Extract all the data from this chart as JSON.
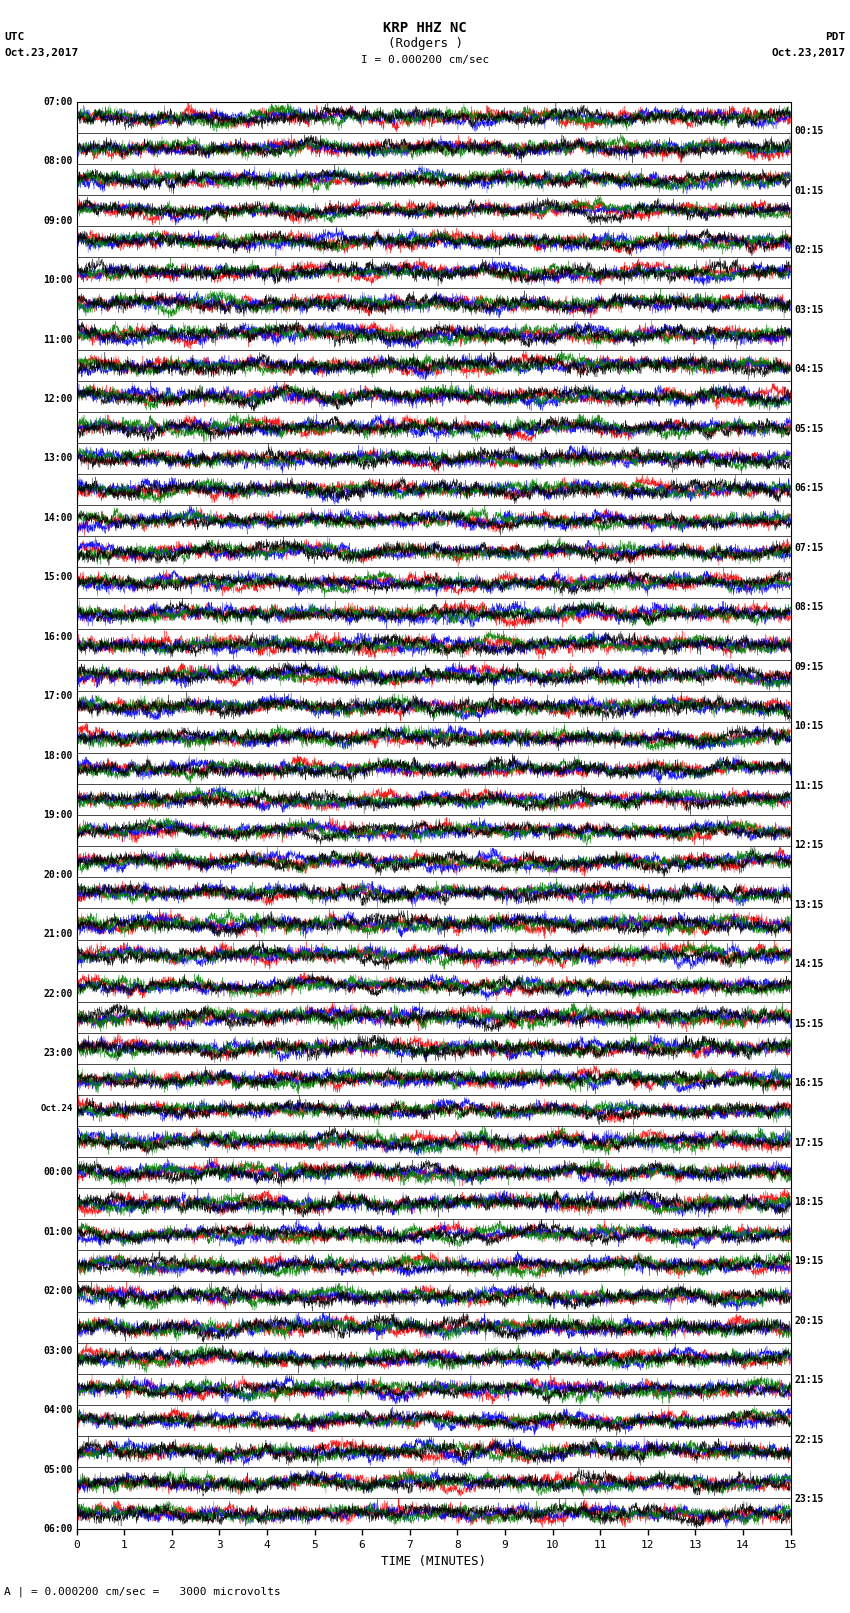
{
  "title_line1": "KRP HHZ NC",
  "title_line2": "(Rodgers )",
  "scale_label": "I = 0.000200 cm/sec",
  "utc_label": "UTC",
  "utc_date": "Oct.23,2017",
  "pdt_label": "PDT",
  "pdt_date": "Oct.23,2017",
  "xlabel": "TIME (MINUTES)",
  "footer": "A | = 0.000200 cm/sec =   3000 microvolts",
  "left_times": [
    "07:00",
    "08:00",
    "09:00",
    "10:00",
    "11:00",
    "12:00",
    "13:00",
    "14:00",
    "15:00",
    "16:00",
    "17:00",
    "18:00",
    "19:00",
    "20:00",
    "21:00",
    "22:00",
    "23:00",
    "Oct.24",
    "00:00",
    "01:00",
    "02:00",
    "03:00",
    "04:00",
    "05:00",
    "06:00"
  ],
  "right_times": [
    "00:15",
    "01:15",
    "02:15",
    "03:15",
    "04:15",
    "05:15",
    "06:15",
    "07:15",
    "08:15",
    "09:15",
    "10:15",
    "11:15",
    "12:15",
    "13:15",
    "14:15",
    "15:15",
    "16:15",
    "17:15",
    "18:15",
    "19:15",
    "20:15",
    "21:15",
    "22:15",
    "23:15"
  ],
  "n_rows": 46,
  "n_cols": 4000,
  "xmin": 0,
  "xmax": 15,
  "colors": [
    "red",
    "blue",
    "green",
    "black"
  ],
  "bg_color": "white",
  "fig_width": 8.5,
  "fig_height": 16.13,
  "dpi": 100
}
